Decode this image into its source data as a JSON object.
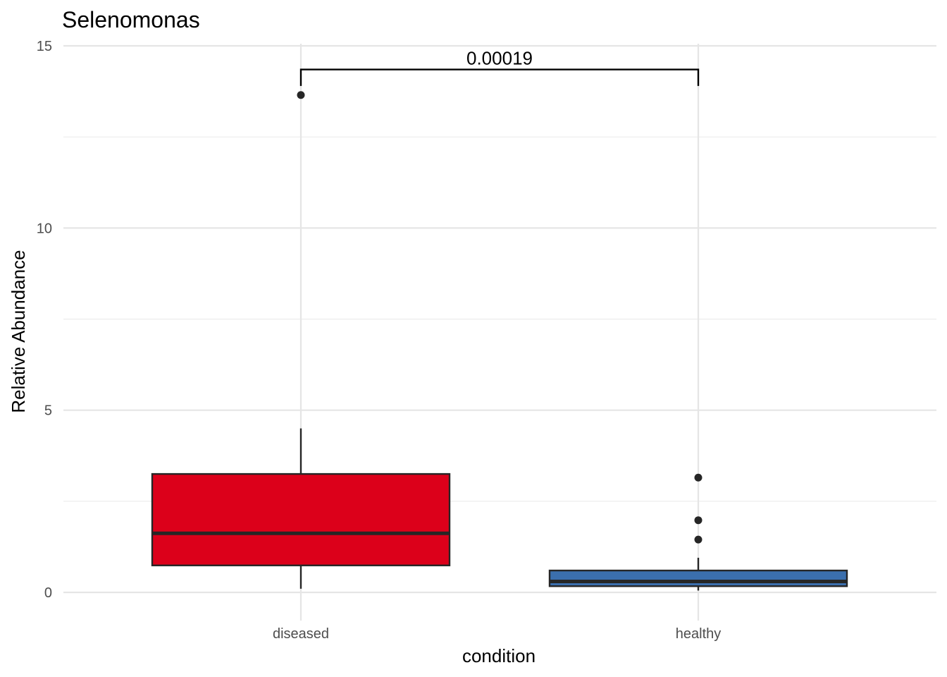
{
  "chart_data": {
    "type": "box",
    "title": "Selenomonas",
    "xlabel": "condition",
    "ylabel": "Relative Abundance",
    "ylim": [
      -0.8,
      15.2
    ],
    "y_ticks": [
      0,
      5,
      10,
      15
    ],
    "grid": true,
    "categories": [
      "diseased",
      "healthy"
    ],
    "series": [
      {
        "category": "diseased",
        "color": "#DC001A",
        "whisker_low": 0.1,
        "q1": 0.74,
        "median": 1.62,
        "q3": 3.25,
        "whisker_high": 4.5,
        "outliers": [
          13.65
        ]
      },
      {
        "category": "healthy",
        "color": "#3B6FAD",
        "whisker_low": 0.05,
        "q1": 0.17,
        "median": 0.3,
        "q3": 0.6,
        "whisker_high": 0.95,
        "outliers": [
          3.15,
          1.98,
          1.45
        ]
      }
    ],
    "annotations": [
      {
        "type": "significance-bracket",
        "from": "diseased",
        "to": "healthy",
        "label": "0.00019",
        "y": 14.35,
        "tip_y": 13.9
      }
    ]
  }
}
